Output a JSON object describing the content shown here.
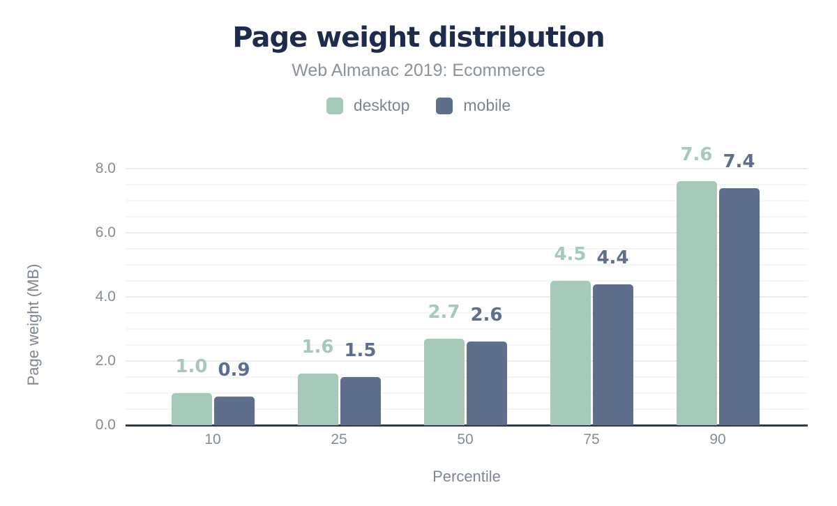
{
  "chart_data": {
    "type": "bar",
    "title": "Page weight distribution",
    "subtitle": "Web Almanac 2019: Ecommerce",
    "xlabel": "Percentile",
    "ylabel": "Page weight (MB)",
    "categories": [
      "10",
      "25",
      "50",
      "75",
      "90"
    ],
    "series": [
      {
        "name": "desktop",
        "color": "#a7c9b9",
        "values": [
          1.0,
          1.6,
          2.7,
          4.5,
          7.6
        ],
        "value_labels": [
          "1.0",
          "1.6",
          "2.7",
          "4.5",
          "7.6"
        ]
      },
      {
        "name": "mobile",
        "color": "#5f6e8c",
        "values": [
          0.9,
          1.5,
          2.6,
          4.4,
          7.4
        ],
        "value_labels": [
          "0.9",
          "1.5",
          "2.6",
          "4.4",
          "7.4"
        ]
      }
    ],
    "ylim": [
      0,
      8
    ],
    "y_major_ticks": [
      0,
      2,
      4,
      6,
      8
    ],
    "y_tick_labels": [
      "0.0",
      "2.0",
      "4.0",
      "6.0",
      "8.0"
    ],
    "y_minor_step": 0.5,
    "grid": "horizontal",
    "legend_position": "top",
    "legend": [
      "desktop",
      "mobile"
    ]
  },
  "colors": {
    "title": "#1e2b4c",
    "subtitle": "#8b9299",
    "axis_text": "#848c96",
    "axis_title": "#7e8791",
    "axis_line": "#2c3b52",
    "grid_major": "#e9ebee",
    "grid_minor": "#f4f5f6",
    "background": "#ffffff"
  }
}
